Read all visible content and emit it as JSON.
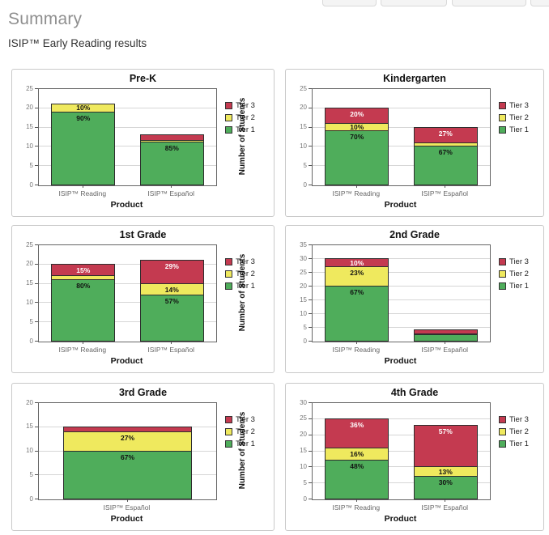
{
  "header": {
    "title": "Summary",
    "subtitle": "ISIP™ Early Reading results"
  },
  "toolbar": {
    "button_count": 4
  },
  "legend": {
    "position": "right",
    "items": [
      {
        "label": "Tier 3",
        "color": "#c43a50"
      },
      {
        "label": "Tier 2",
        "color": "#efe95e"
      },
      {
        "label": "Tier 1",
        "color": "#4fad5b"
      }
    ]
  },
  "axes": {
    "ylabel": "Number of Students",
    "xlabel": "Product"
  },
  "colors": {
    "tier1": "#4fad5b",
    "tier2": "#efe95e",
    "tier3": "#c43a50",
    "label_on_dark": "#ffffff",
    "label_on_light": "#111111"
  },
  "chart_data": [
    {
      "type": "bar",
      "stacked": true,
      "title": "Pre-K",
      "ylim": [
        0,
        25
      ],
      "ytick_step": 5,
      "grid": true,
      "legend_position": "right",
      "xlabel": "Product",
      "ylabel": "Number of Students",
      "categories": [
        "ISIP™ Reading",
        "ISIP™ Español"
      ],
      "series": [
        {
          "name": "Tier 1",
          "color": "#4fad5b",
          "values": [
            19,
            11.1
          ],
          "labels": [
            "90%",
            "85%"
          ]
        },
        {
          "name": "Tier 2",
          "color": "#efe95e",
          "values": [
            2,
            0.5
          ],
          "labels": [
            "10%",
            ""
          ]
        },
        {
          "name": "Tier 3",
          "color": "#c43a50",
          "values": [
            0,
            1.4
          ],
          "labels": [
            "",
            ""
          ]
        }
      ]
    },
    {
      "type": "bar",
      "stacked": true,
      "title": "Kindergarten",
      "ylim": [
        0,
        25
      ],
      "ytick_step": 5,
      "grid": true,
      "legend_position": "right",
      "xlabel": "Product",
      "ylabel": "Number of Students",
      "categories": [
        "ISIP™ Reading",
        "ISIP™ Español"
      ],
      "series": [
        {
          "name": "Tier 1",
          "color": "#4fad5b",
          "values": [
            14,
            10
          ],
          "labels": [
            "70%",
            "67%"
          ]
        },
        {
          "name": "Tier 2",
          "color": "#efe95e",
          "values": [
            2,
            1
          ],
          "labels": [
            "10%",
            ""
          ]
        },
        {
          "name": "Tier 3",
          "color": "#c43a50",
          "values": [
            4,
            4
          ],
          "labels": [
            "20%",
            "27%"
          ]
        }
      ]
    },
    {
      "type": "bar",
      "stacked": true,
      "title": "1st Grade",
      "ylim": [
        0,
        25
      ],
      "ytick_step": 5,
      "grid": true,
      "legend_position": "right",
      "xlabel": "Product",
      "ylabel": "Number of Students",
      "categories": [
        "ISIP™ Reading",
        "ISIP™ Español"
      ],
      "series": [
        {
          "name": "Tier 1",
          "color": "#4fad5b",
          "values": [
            16,
            12
          ],
          "labels": [
            "80%",
            "57%"
          ]
        },
        {
          "name": "Tier 2",
          "color": "#efe95e",
          "values": [
            1,
            3
          ],
          "labels": [
            "",
            "14%"
          ]
        },
        {
          "name": "Tier 3",
          "color": "#c43a50",
          "values": [
            3,
            6
          ],
          "labels": [
            "15%",
            "29%"
          ]
        }
      ]
    },
    {
      "type": "bar",
      "stacked": true,
      "title": "2nd Grade",
      "ylim": [
        0,
        35
      ],
      "ytick_step": 5,
      "grid": true,
      "legend_position": "right",
      "xlabel": "Product",
      "ylabel": "Number of Students",
      "categories": [
        "ISIP™ Reading",
        "ISIP™ Español"
      ],
      "series": [
        {
          "name": "Tier 1",
          "color": "#4fad5b",
          "values": [
            20,
            2.25
          ],
          "labels": [
            "67%",
            ""
          ]
        },
        {
          "name": "Tier 2",
          "color": "#efe95e",
          "values": [
            7,
            0.5
          ],
          "labels": [
            "23%",
            ""
          ]
        },
        {
          "name": "Tier 3",
          "color": "#c43a50",
          "values": [
            3,
            1.25
          ],
          "labels": [
            "10%",
            ""
          ]
        }
      ]
    },
    {
      "type": "bar",
      "stacked": true,
      "title": "3rd Grade",
      "ylim": [
        0,
        20
      ],
      "ytick_step": 5,
      "grid": true,
      "legend_position": "right",
      "xlabel": "Product",
      "ylabel": "Number of Students",
      "categories": [
        "ISIP™ Español"
      ],
      "series": [
        {
          "name": "Tier 1",
          "color": "#4fad5b",
          "values": [
            10
          ],
          "labels": [
            "67%"
          ]
        },
        {
          "name": "Tier 2",
          "color": "#efe95e",
          "values": [
            4
          ],
          "labels": [
            "27%"
          ]
        },
        {
          "name": "Tier 3",
          "color": "#c43a50",
          "values": [
            1
          ],
          "labels": [
            ""
          ]
        }
      ]
    },
    {
      "type": "bar",
      "stacked": true,
      "title": "4th Grade",
      "ylim": [
        0,
        30
      ],
      "ytick_step": 5,
      "grid": true,
      "legend_position": "right",
      "xlabel": "Product",
      "ylabel": "Number of Students",
      "categories": [
        "ISIP™ Reading",
        "ISIP™ Español"
      ],
      "series": [
        {
          "name": "Tier 1",
          "color": "#4fad5b",
          "values": [
            12,
            7
          ],
          "labels": [
            "48%",
            "30%"
          ]
        },
        {
          "name": "Tier 2",
          "color": "#efe95e",
          "values": [
            4,
            3
          ],
          "labels": [
            "16%",
            "13%"
          ]
        },
        {
          "name": "Tier 3",
          "color": "#c43a50",
          "values": [
            9,
            13
          ],
          "labels": [
            "36%",
            "57%"
          ]
        }
      ]
    }
  ]
}
